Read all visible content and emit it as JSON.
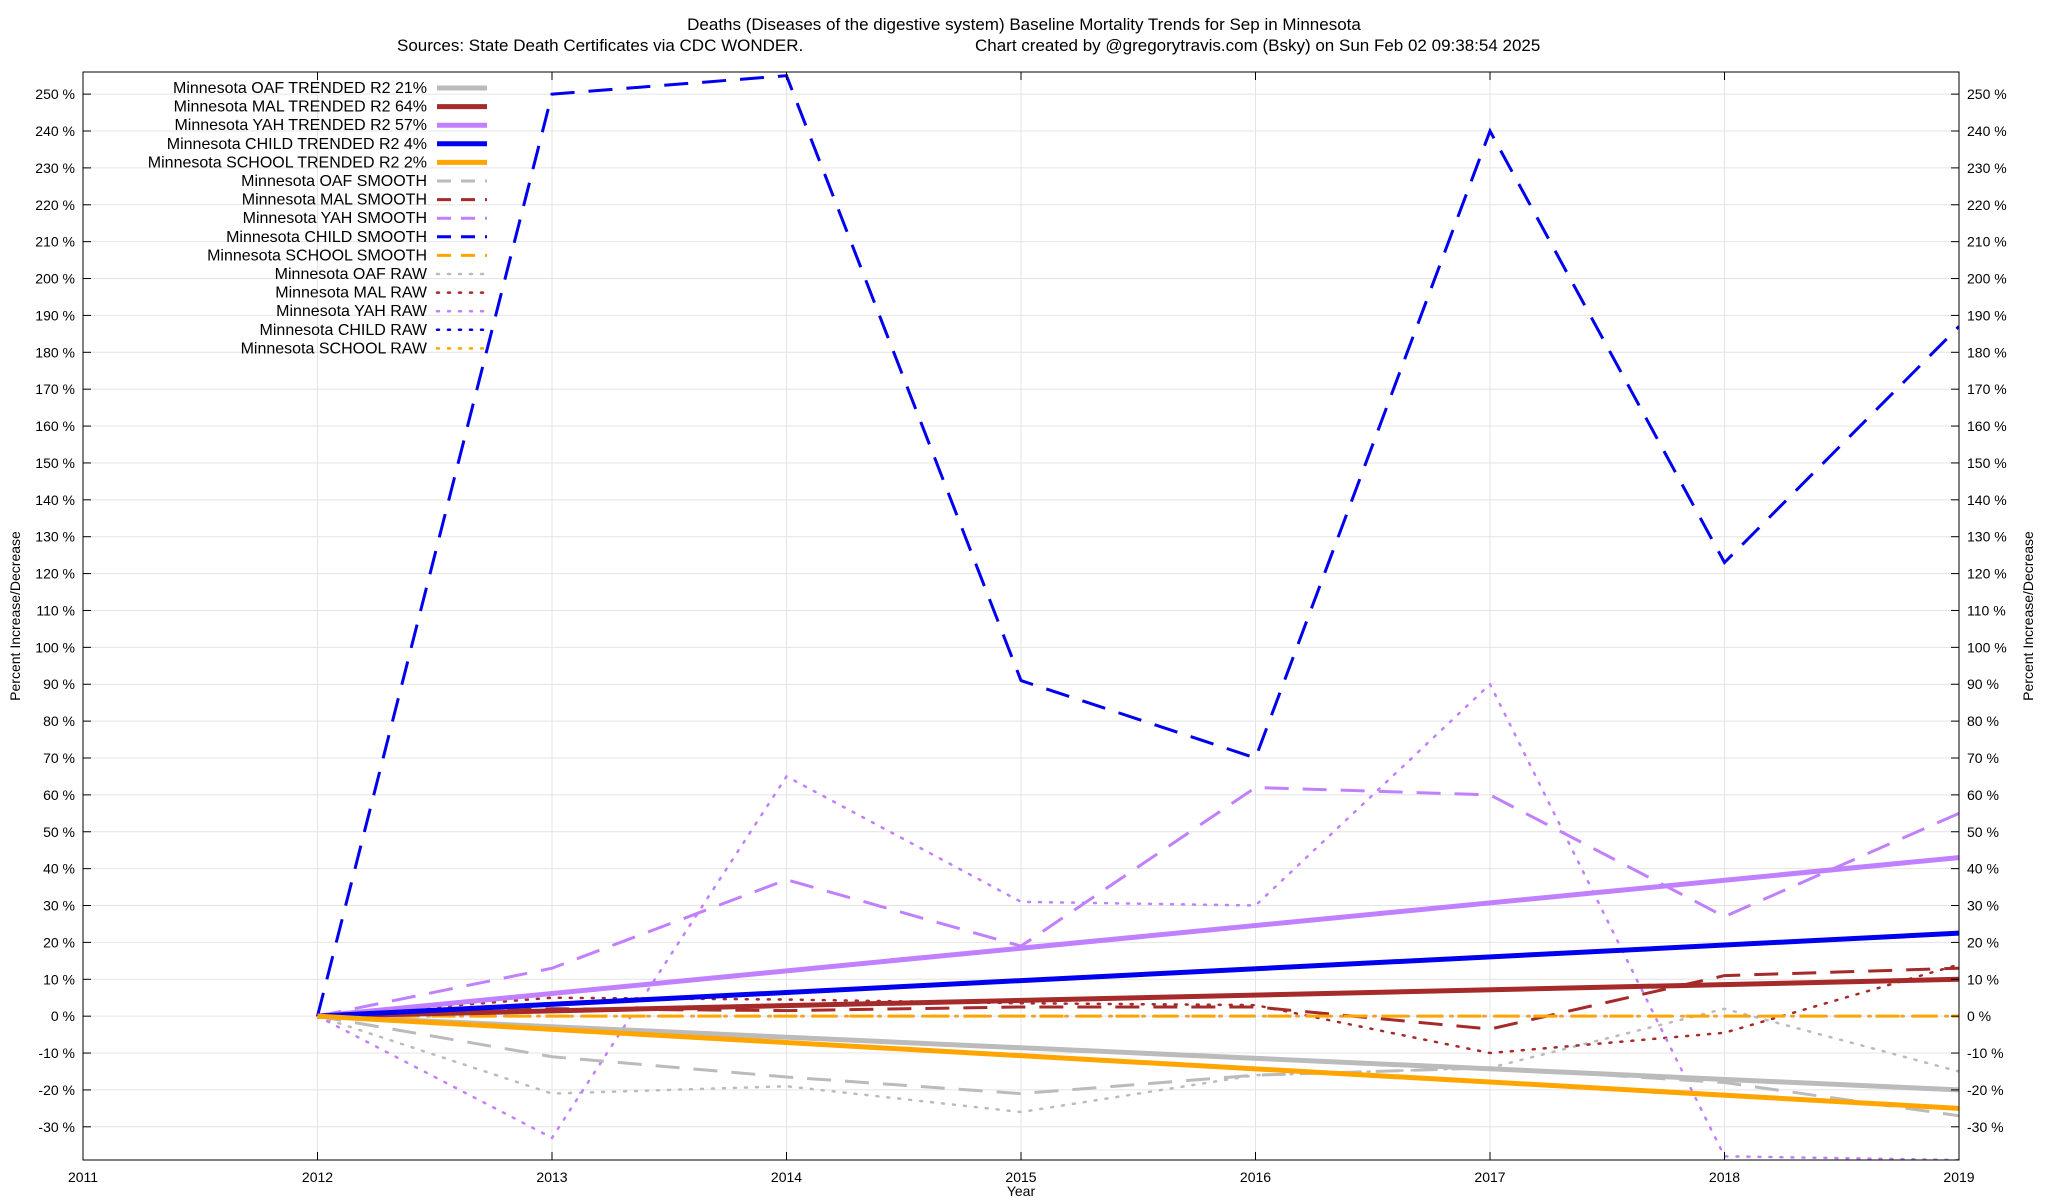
{
  "chart_data": {
    "type": "line",
    "title": "Deaths (Diseases of the digestive system)  Baseline Mortality Trends for Sep in Minnesota",
    "subtitle_left": "Sources: State Death Certificates via CDC WONDER.",
    "subtitle_right": "Chart created by @gregorytravis.com (Bsky) on Sun Feb 02 09:38:54 2025",
    "xlabel": "Year",
    "ylabel": "Percent Increase/Decrease",
    "xlim": [
      2011,
      2019
    ],
    "ylim": [
      -39,
      256
    ],
    "x_ticks": [
      "2011",
      "2012",
      "2013",
      "2014",
      "2015",
      "2016",
      "2017",
      "2018",
      "2019"
    ],
    "y_ticks": [
      {
        "v": 250,
        "label": "250 %"
      },
      {
        "v": 240,
        "label": "240 %"
      },
      {
        "v": 230,
        "label": "230 %"
      },
      {
        "v": 220,
        "label": "220 %"
      },
      {
        "v": 210,
        "label": "210 %"
      },
      {
        "v": 200,
        "label": "200 %"
      },
      {
        "v": 190,
        "label": "190 %"
      },
      {
        "v": 180,
        "label": "180 %"
      },
      {
        "v": 170,
        "label": "170 %"
      },
      {
        "v": 160,
        "label": "160 %"
      },
      {
        "v": 150,
        "label": "150 %"
      },
      {
        "v": 140,
        "label": "140 %"
      },
      {
        "v": 130,
        "label": "130 %"
      },
      {
        "v": 120,
        "label": "120 %"
      },
      {
        "v": 110,
        "label": "110 %"
      },
      {
        "v": 100,
        "label": "100 %"
      },
      {
        "v": 90,
        "label": "90 %"
      },
      {
        "v": 80,
        "label": "80 %"
      },
      {
        "v": 70,
        "label": "70 %"
      },
      {
        "v": 60,
        "label": "60 %"
      },
      {
        "v": 50,
        "label": "50 %"
      },
      {
        "v": 40,
        "label": "40 %"
      },
      {
        "v": 30,
        "label": "30 %"
      },
      {
        "v": 20,
        "label": "20 %"
      },
      {
        "v": 10,
        "label": "10 %"
      },
      {
        "v": 0,
        "label": "0 %"
      },
      {
        "v": -10,
        "label": "-10 %"
      },
      {
        "v": -20,
        "label": "-20 %"
      },
      {
        "v": -30,
        "label": "-30 %"
      }
    ],
    "grid": true,
    "legend_position": "top-left",
    "series": [
      {
        "name": "Minnesota OAF TRENDED R2  21%",
        "color": "#bbbbbb",
        "style": "solid",
        "x": [
          2012,
          2019
        ],
        "y": [
          0,
          -20
        ]
      },
      {
        "name": "Minnesota MAL TRENDED R2  64%",
        "color": "#a52a2a",
        "style": "solid",
        "x": [
          2012,
          2019
        ],
        "y": [
          0,
          10
        ]
      },
      {
        "name": "Minnesota YAH TRENDED R2  57%",
        "color": "#c080ff",
        "style": "solid",
        "x": [
          2012,
          2019
        ],
        "y": [
          0,
          43
        ]
      },
      {
        "name": "Minnesota CHILD TRENDED R2   4%",
        "color": "#0000ee",
        "style": "solid",
        "x": [
          2012,
          2019
        ],
        "y": [
          0,
          22.5
        ]
      },
      {
        "name": "Minnesota SCHOOL TRENDED R2   2%",
        "color": "#ffa500",
        "style": "solid",
        "x": [
          2012,
          2019
        ],
        "y": [
          0,
          -25
        ]
      },
      {
        "name": "Minnesota OAF SMOOTH",
        "color": "#bbbbbb",
        "style": "dashed",
        "x": [
          2012,
          2013,
          2014,
          2015,
          2016,
          2017,
          2018,
          2019
        ],
        "y": [
          0,
          -11,
          -16.5,
          -21,
          -16,
          -14,
          -18,
          -27
        ]
      },
      {
        "name": "Minnesota MAL SMOOTH",
        "color": "#a52a2a",
        "style": "dashed",
        "x": [
          2012,
          2013,
          2014,
          2015,
          2016,
          2017,
          2018,
          2019
        ],
        "y": [
          0,
          2,
          1.5,
          2.5,
          2.5,
          -3.5,
          11,
          13
        ]
      },
      {
        "name": "Minnesota YAH SMOOTH",
        "color": "#c080ff",
        "style": "dashed",
        "x": [
          2012,
          2013,
          2014,
          2015,
          2016,
          2017,
          2018,
          2019
        ],
        "y": [
          0,
          13,
          37,
          19,
          62,
          60,
          27,
          55
        ]
      },
      {
        "name": "Minnesota CHILD SMOOTH",
        "color": "#0000ee",
        "style": "dashed",
        "x": [
          2012,
          2013,
          2014,
          2015,
          2016,
          2017,
          2018,
          2019
        ],
        "y": [
          0,
          250,
          255,
          91,
          70,
          240,
          123,
          187
        ]
      },
      {
        "name": "Minnesota SCHOOL SMOOTH",
        "color": "#ffa500",
        "style": "dashed",
        "x": [
          2012,
          2013,
          2014,
          2015,
          2016,
          2017,
          2018,
          2019
        ],
        "y": [
          0,
          0,
          0,
          0,
          0,
          0,
          0,
          0
        ]
      },
      {
        "name": "Minnesota OAF RAW",
        "color": "#bbbbbb",
        "style": "dotted",
        "x": [
          2012,
          2013,
          2014,
          2015,
          2016,
          2017,
          2018,
          2019
        ],
        "y": [
          0,
          -21,
          -19,
          -26,
          -16,
          -14,
          2,
          -15
        ]
      },
      {
        "name": "Minnesota MAL RAW",
        "color": "#a52a2a",
        "style": "dotted",
        "x": [
          2012,
          2013,
          2014,
          2015,
          2016,
          2017,
          2018,
          2019
        ],
        "y": [
          0,
          5,
          4.5,
          3.5,
          3,
          -10,
          -4.5,
          14
        ]
      },
      {
        "name": "Minnesota YAH RAW",
        "color": "#c080ff",
        "style": "dotted",
        "x": [
          2012,
          2013,
          2014,
          2015,
          2016,
          2017,
          2018,
          2019
        ],
        "y": [
          0,
          -33,
          65,
          31,
          30,
          90,
          -38,
          -39
        ]
      },
      {
        "name": "Minnesota CHILD RAW",
        "color": "#0000ee",
        "style": "dotted",
        "x": [
          2012,
          2013,
          2014,
          2015,
          2016,
          2017,
          2018,
          2019
        ],
        "y": [
          0,
          0,
          0,
          0,
          0,
          0,
          0,
          0
        ]
      },
      {
        "name": "Minnesota SCHOOL RAW",
        "color": "#ffa500",
        "style": "dotted",
        "x": [
          2012,
          2013,
          2014,
          2015,
          2016,
          2017,
          2018,
          2019
        ],
        "y": [
          0,
          0,
          0,
          0,
          0,
          0,
          0,
          0
        ]
      }
    ]
  }
}
